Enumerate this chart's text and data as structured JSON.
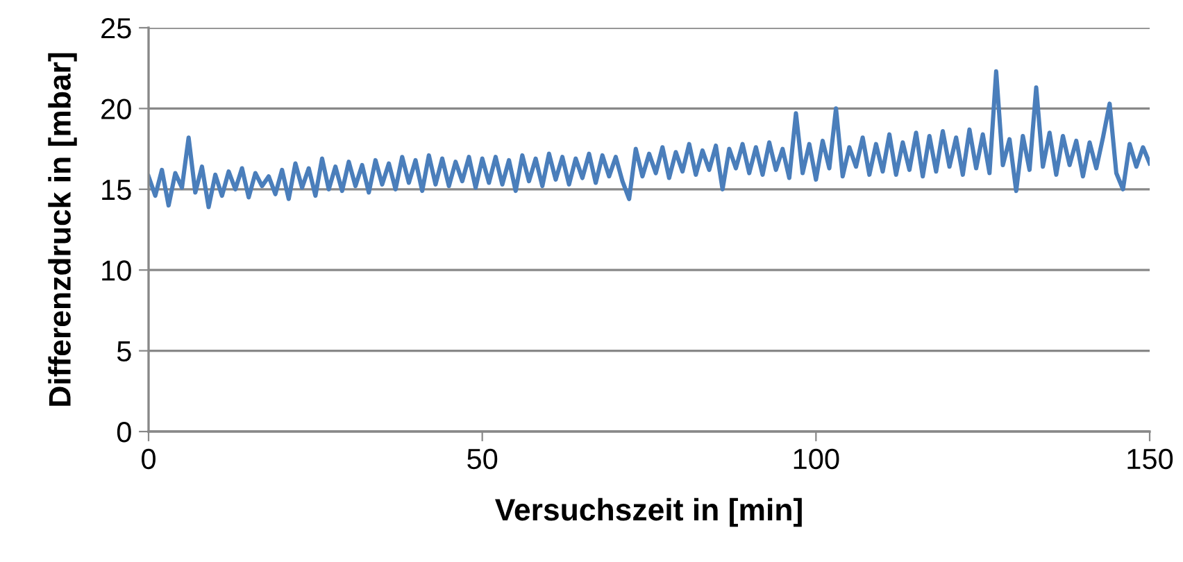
{
  "chart_data": {
    "type": "line",
    "xlabel": "Versuchszeit in [min]",
    "ylabel": "Differenzdruck in [mbar]",
    "x": [
      0,
      1,
      2,
      3,
      4,
      5,
      6,
      7,
      8,
      9,
      10,
      11,
      12,
      13,
      14,
      15,
      16,
      17,
      18,
      19,
      20,
      21,
      22,
      23,
      24,
      25,
      26,
      27,
      28,
      29,
      30,
      31,
      32,
      33,
      34,
      35,
      36,
      37,
      38,
      39,
      40,
      41,
      42,
      43,
      44,
      45,
      46,
      47,
      48,
      49,
      50,
      51,
      52,
      53,
      54,
      55,
      56,
      57,
      58,
      59,
      60,
      61,
      62,
      63,
      64,
      65,
      66,
      67,
      68,
      69,
      70,
      71,
      72,
      73,
      74,
      75,
      76,
      77,
      78,
      79,
      80,
      81,
      82,
      83,
      84,
      85,
      86,
      87,
      88,
      89,
      90,
      91,
      92,
      93,
      94,
      95,
      96,
      97,
      98,
      99,
      100,
      101,
      102,
      103,
      104,
      105,
      106,
      107,
      108,
      109,
      110,
      111,
      112,
      113,
      114,
      115,
      116,
      117,
      118,
      119,
      120,
      121,
      122,
      123,
      124,
      125,
      126,
      127,
      128,
      129,
      130,
      131,
      132,
      133,
      134,
      135,
      136,
      137,
      138,
      139,
      140,
      141,
      142,
      143,
      144,
      145,
      146,
      147,
      148,
      149,
      150
    ],
    "series": [
      {
        "color": "#4a7ebb",
        "values": [
          15.8,
          14.6,
          16.2,
          14.0,
          16.0,
          15.1,
          18.2,
          14.8,
          16.4,
          13.9,
          15.9,
          14.6,
          16.1,
          15.0,
          16.3,
          14.5,
          16.0,
          15.2,
          15.8,
          14.7,
          16.2,
          14.4,
          16.6,
          15.1,
          16.3,
          14.6,
          16.9,
          15.0,
          16.4,
          14.9,
          16.7,
          15.2,
          16.5,
          14.8,
          16.8,
          15.3,
          16.6,
          15.0,
          17.0,
          15.4,
          16.8,
          14.9,
          17.1,
          15.3,
          16.9,
          15.2,
          16.7,
          15.5,
          17.0,
          15.1,
          16.9,
          15.4,
          17.0,
          15.3,
          16.8,
          14.9,
          17.1,
          15.5,
          16.9,
          15.2,
          17.2,
          15.6,
          17.0,
          15.3,
          16.9,
          15.7,
          17.2,
          15.4,
          17.1,
          15.8,
          17.0,
          15.5,
          14.4,
          17.5,
          15.8,
          17.2,
          16.0,
          17.6,
          15.7,
          17.3,
          16.1,
          17.8,
          15.9,
          17.4,
          16.2,
          17.7,
          15.0,
          17.5,
          16.3,
          17.8,
          16.0,
          17.6,
          15.9,
          17.9,
          16.2,
          17.5,
          15.7,
          19.7,
          16.0,
          17.8,
          15.6,
          18.0,
          16.3,
          20.0,
          15.8,
          17.6,
          16.4,
          18.2,
          15.9,
          17.8,
          16.1,
          18.4,
          15.9,
          17.9,
          16.2,
          18.5,
          15.8,
          18.3,
          16.1,
          18.6,
          16.4,
          18.2,
          15.9,
          18.7,
          16.3,
          18.4,
          16.0,
          22.3,
          16.5,
          18.1,
          14.9,
          18.3,
          16.2,
          21.3,
          16.4,
          18.5,
          15.9,
          18.3,
          16.5,
          18.0,
          15.8,
          17.9,
          16.3,
          18.2,
          20.3,
          16.0,
          15.0,
          17.8,
          16.4,
          17.6,
          16.6
        ]
      }
    ],
    "xlim": [
      0,
      150
    ],
    "xticks": [
      0,
      50,
      100,
      150
    ],
    "ylim": [
      0,
      25
    ],
    "yticks": [
      0,
      5,
      10,
      15,
      20,
      25
    ],
    "grid": "y",
    "legend": false,
    "marker": "none",
    "line_style": "solid"
  }
}
